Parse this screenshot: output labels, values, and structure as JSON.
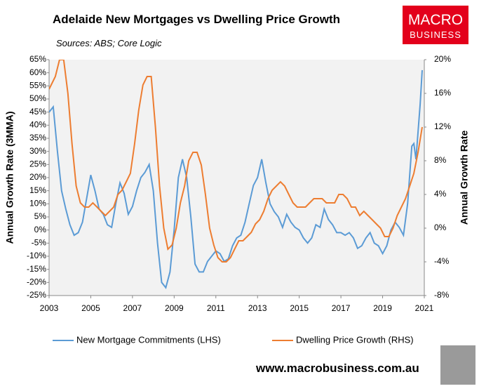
{
  "chart_data": {
    "type": "line",
    "title": "Adelaide New Mortgages vs Dwelling Price Growth",
    "subtitle": "Sources: ABS; Core Logic",
    "logo": [
      "MACRO",
      "BUSINESS"
    ],
    "website": "www.macrobusiness.com.au",
    "ylabel": "Annual Growth Rate (3MMA)",
    "y2label": "Annual Growth Rate",
    "xlim": [
      2003,
      2021
    ],
    "xticks": [
      2003,
      2005,
      2007,
      2009,
      2011,
      2013,
      2015,
      2017,
      2019,
      2021
    ],
    "ylim": [
      -25,
      65
    ],
    "yticks": [
      {
        "value": -25,
        "label": "-25%"
      },
      {
        "value": -20,
        "label": "-20%"
      },
      {
        "value": -15,
        "label": "-15%"
      },
      {
        "value": -10,
        "label": "-10%"
      },
      {
        "value": -5,
        "label": "-5%"
      },
      {
        "value": 0,
        "label": "0%"
      },
      {
        "value": 5,
        "label": "5%"
      },
      {
        "value": 10,
        "label": "10%"
      },
      {
        "value": 15,
        "label": "15%"
      },
      {
        "value": 20,
        "label": "20%"
      },
      {
        "value": 25,
        "label": "25%"
      },
      {
        "value": 30,
        "label": "30%"
      },
      {
        "value": 35,
        "label": "35%"
      },
      {
        "value": 40,
        "label": "40%"
      },
      {
        "value": 45,
        "label": "45%"
      },
      {
        "value": 50,
        "label": "50%"
      },
      {
        "value": 55,
        "label": "55%"
      },
      {
        "value": 60,
        "label": "60%"
      },
      {
        "value": 65,
        "label": "65%"
      }
    ],
    "y2lim": [
      -8,
      20
    ],
    "y2ticks": [
      {
        "value": -8,
        "label": "-8%"
      },
      {
        "value": -4,
        "label": "-4%"
      },
      {
        "value": 0,
        "label": "0%"
      },
      {
        "value": 4,
        "label": "4%"
      },
      {
        "value": 8,
        "label": "8%"
      },
      {
        "value": 12,
        "label": "12%"
      },
      {
        "value": 16,
        "label": "16%"
      },
      {
        "value": 20,
        "label": "20%"
      }
    ],
    "series": [
      {
        "name": "New Mortgage Commitments (LHS)",
        "color": "#5b9bd5",
        "axis": "y",
        "x": [
          2003.0,
          2003.2,
          2003.4,
          2003.6,
          2003.8,
          2004.0,
          2004.2,
          2004.4,
          2004.6,
          2004.8,
          2005.0,
          2005.2,
          2005.4,
          2005.6,
          2005.8,
          2006.0,
          2006.2,
          2006.4,
          2006.6,
          2006.8,
          2007.0,
          2007.2,
          2007.4,
          2007.6,
          2007.8,
          2008.0,
          2008.2,
          2008.4,
          2008.6,
          2008.8,
          2009.0,
          2009.2,
          2009.4,
          2009.6,
          2009.8,
          2010.0,
          2010.2,
          2010.4,
          2010.6,
          2010.8,
          2011.0,
          2011.2,
          2011.4,
          2011.6,
          2011.8,
          2012.0,
          2012.2,
          2012.4,
          2012.6,
          2012.8,
          2013.0,
          2013.2,
          2013.4,
          2013.6,
          2013.8,
          2014.0,
          2014.2,
          2014.4,
          2014.6,
          2014.8,
          2015.0,
          2015.2,
          2015.4,
          2015.6,
          2015.8,
          2016.0,
          2016.2,
          2016.4,
          2016.6,
          2016.8,
          2017.0,
          2017.2,
          2017.4,
          2017.6,
          2017.8,
          2018.0,
          2018.2,
          2018.4,
          2018.6,
          2018.8,
          2019.0,
          2019.2,
          2019.4,
          2019.6,
          2019.8,
          2020.0,
          2020.2,
          2020.4,
          2020.5,
          2020.6,
          2020.8,
          2020.9
        ],
        "values": [
          45,
          47,
          30,
          15,
          8,
          2,
          -2,
          -1,
          3,
          12,
          21,
          15,
          8,
          6,
          2,
          1,
          10,
          18,
          14,
          6,
          9,
          15,
          20,
          22,
          25,
          15,
          -5,
          -20,
          -22,
          -16,
          0,
          20,
          27,
          20,
          5,
          -13,
          -16,
          -16,
          -12,
          -10,
          -8,
          -9,
          -12,
          -11,
          -6,
          -3,
          -2,
          3,
          10,
          17,
          20,
          27,
          18,
          10,
          7,
          5,
          1,
          6,
          3,
          1,
          0,
          -3,
          -5,
          -3,
          2,
          1,
          8,
          4,
          2,
          -1,
          -1,
          -2,
          -1,
          -3,
          -7,
          -6,
          -3,
          -1,
          -5,
          -6,
          -9,
          -6,
          0,
          3,
          1,
          -2,
          10,
          32,
          33,
          27,
          48,
          61
        ]
      },
      {
        "name": "Dwelling Price Growth (RHS)",
        "color": "#ed7d31",
        "axis": "y2",
        "x": [
          2003.0,
          2003.3,
          2003.5,
          2003.7,
          2003.9,
          2004.1,
          2004.3,
          2004.5,
          2004.7,
          2004.9,
          2005.1,
          2005.3,
          2005.5,
          2005.7,
          2005.9,
          2006.1,
          2006.3,
          2006.5,
          2006.7,
          2006.9,
          2007.1,
          2007.3,
          2007.5,
          2007.7,
          2007.9,
          2008.1,
          2008.3,
          2008.5,
          2008.7,
          2008.9,
          2009.1,
          2009.3,
          2009.5,
          2009.7,
          2009.9,
          2010.1,
          2010.3,
          2010.5,
          2010.7,
          2010.9,
          2011.1,
          2011.3,
          2011.5,
          2011.7,
          2011.9,
          2012.1,
          2012.3,
          2012.5,
          2012.7,
          2012.9,
          2013.1,
          2013.3,
          2013.5,
          2013.7,
          2013.9,
          2014.1,
          2014.3,
          2014.5,
          2014.7,
          2014.9,
          2015.1,
          2015.3,
          2015.5,
          2015.7,
          2015.9,
          2016.1,
          2016.3,
          2016.5,
          2016.7,
          2016.9,
          2017.1,
          2017.3,
          2017.5,
          2017.7,
          2017.9,
          2018.1,
          2018.3,
          2018.5,
          2018.7,
          2018.9,
          2019.1,
          2019.3,
          2019.5,
          2019.7,
          2019.9,
          2020.1,
          2020.3,
          2020.5,
          2020.7,
          2020.9
        ],
        "values": [
          16.5,
          18,
          20,
          20,
          16,
          10,
          5,
          3,
          2.5,
          2.5,
          3,
          2.5,
          2,
          1.5,
          2,
          2.5,
          4,
          4.5,
          5.5,
          6.5,
          10,
          14,
          17,
          18,
          18,
          12,
          5,
          0,
          -2.5,
          -2,
          0,
          3,
          5,
          8,
          9,
          9,
          7.5,
          4,
          0,
          -2,
          -3.5,
          -4,
          -4,
          -3.5,
          -2.5,
          -1.5,
          -1.5,
          -1,
          -0.5,
          0.5,
          1,
          2,
          3.5,
          4.5,
          5,
          5.5,
          5,
          4,
          3,
          2.5,
          2.5,
          2.5,
          3,
          3.5,
          3.5,
          3.5,
          3,
          3,
          3,
          4,
          4,
          3.5,
          2.5,
          2.5,
          1.5,
          2,
          1.5,
          1,
          0.5,
          0,
          -1,
          -1,
          0,
          1.5,
          2.5,
          3.5,
          5,
          6.5,
          9,
          12
        ]
      }
    ]
  }
}
